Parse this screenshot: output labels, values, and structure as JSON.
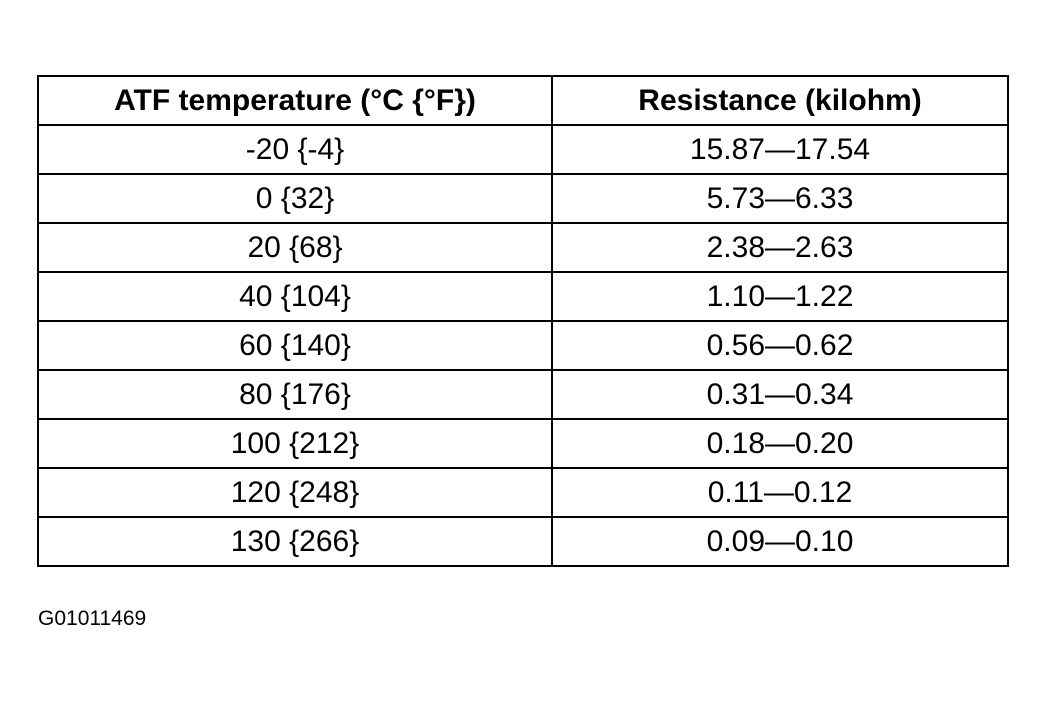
{
  "table": {
    "header": [
      "ATF temperature (°C {°F})",
      "Resistance (kilohm)"
    ],
    "rows": [
      [
        "-20 {-4}",
        "15.87—17.54"
      ],
      [
        "0 {32}",
        "5.73—6.33"
      ],
      [
        "20 {68}",
        "2.38—2.63"
      ],
      [
        "40 {104}",
        "1.10—1.22"
      ],
      [
        "60 {140}",
        "0.56—0.62"
      ],
      [
        "80 {176}",
        "0.31—0.34"
      ],
      [
        "100 {212}",
        "0.18—0.20"
      ],
      [
        "120 {248}",
        "0.11—0.12"
      ],
      [
        "130 {266}",
        "0.09—0.10"
      ]
    ]
  },
  "figure_code": "G01011469"
}
